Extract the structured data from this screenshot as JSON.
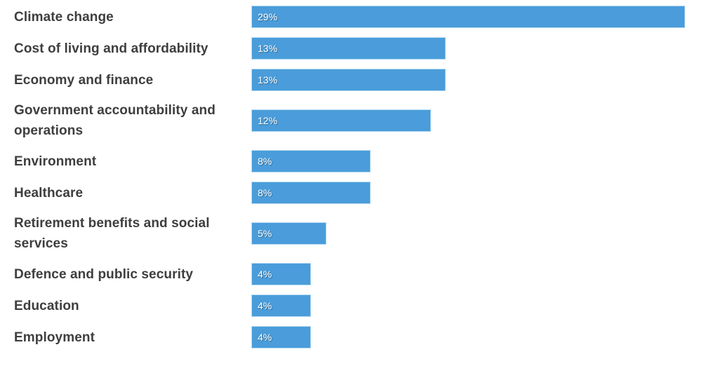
{
  "chart_data": {
    "type": "bar",
    "orientation": "horizontal",
    "title": "",
    "xlabel": "",
    "ylabel": "",
    "grid": false,
    "legend": "none",
    "xlim": [
      0,
      29
    ],
    "categories": [
      "Climate change",
      "Cost of living and affordability",
      "Economy and finance",
      "Government accountability and operations",
      "Environment",
      "Healthcare",
      "Retirement benefits and social services",
      "Defence and public security",
      "Education",
      "Employment"
    ],
    "values": [
      29,
      13,
      13,
      12,
      8,
      8,
      5,
      4,
      4,
      4
    ],
    "value_labels": [
      "29%",
      "13%",
      "13%",
      "12%",
      "8%",
      "8%",
      "5%",
      "4%",
      "4%",
      "4%"
    ],
    "colors": {
      "bar_fill": "#4a9dda",
      "bar_border": "#b5daf2",
      "category_label": "#3e3e3e",
      "value_label": "#ffffff",
      "background": "#ffffff"
    }
  }
}
